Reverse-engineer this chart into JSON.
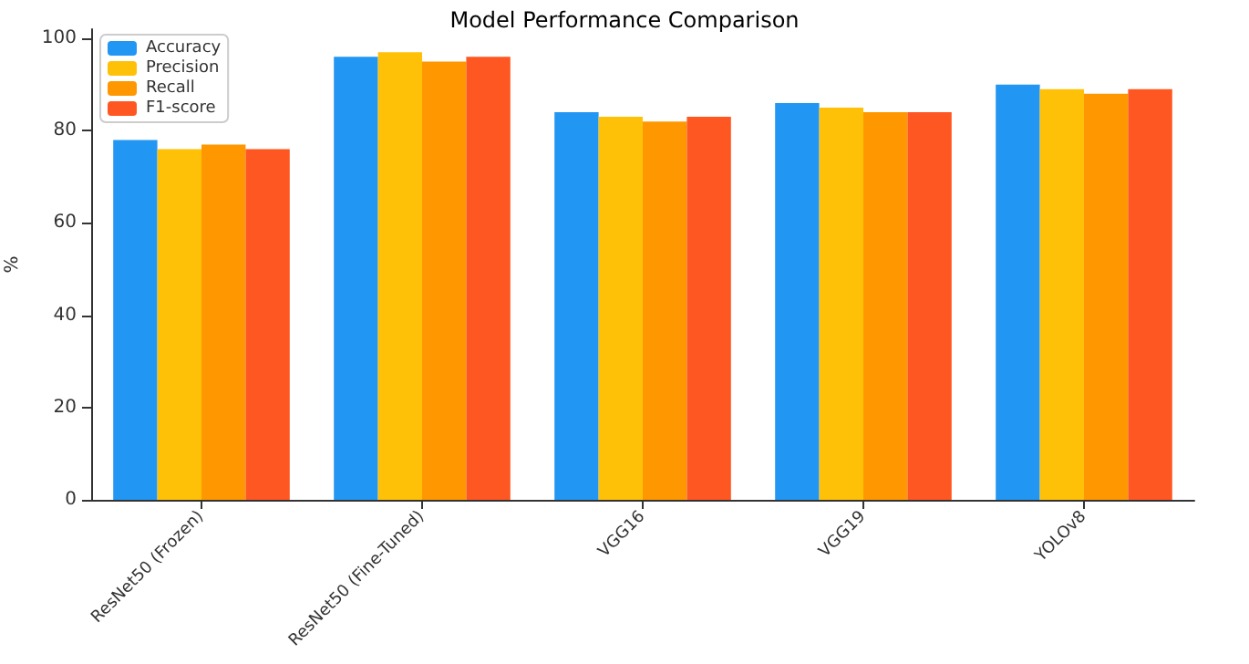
{
  "chart_data": {
    "type": "bar",
    "title": "Model Performance Comparison",
    "ylabel": "%",
    "categories": [
      "ResNet50 (Frozen)",
      "ResNet50 (Fine-Tuned)",
      "VGG16",
      "VGG19",
      "YOLOv8"
    ],
    "series": [
      {
        "name": "Accuracy",
        "color": "#2196f3",
        "values": [
          78,
          96,
          84,
          86,
          90
        ]
      },
      {
        "name": "Precision",
        "color": "#ffc107",
        "values": [
          76,
          97,
          83,
          85,
          89
        ]
      },
      {
        "name": "Recall",
        "color": "#ff9800",
        "values": [
          77,
          95,
          82,
          84,
          88
        ]
      },
      {
        "name": "F1-score",
        "color": "#ff5722",
        "values": [
          76,
          96,
          83,
          84,
          89
        ]
      }
    ],
    "ylim": [
      0,
      102
    ],
    "yticks": [
      0,
      20,
      40,
      60,
      80,
      100
    ],
    "grid": false,
    "legend": "top left"
  }
}
